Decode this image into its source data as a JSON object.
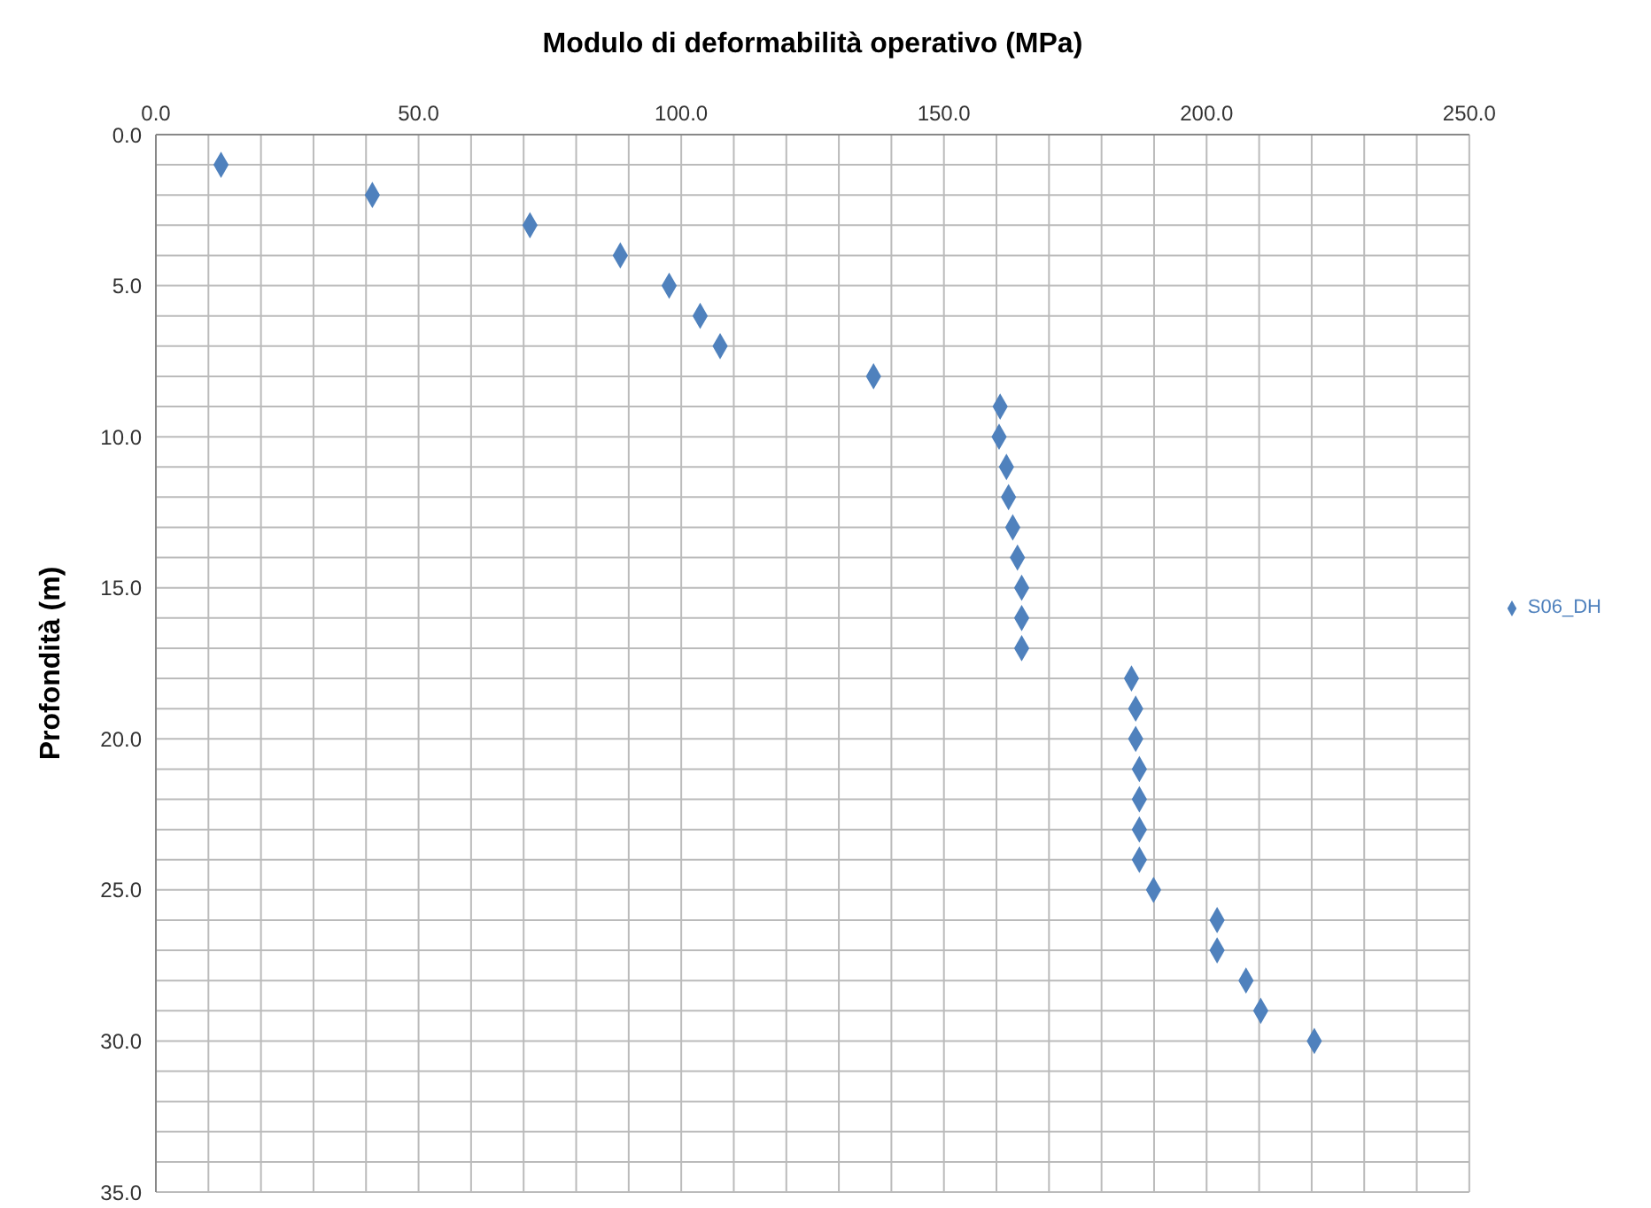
{
  "chart_data": {
    "type": "scatter",
    "xlabel": "Modulo di deformabilità operativo (MPa)",
    "ylabel": "Profondità (m)",
    "xlim": [
      0,
      250
    ],
    "xticks": [
      {
        "value": 0,
        "label": "0.0"
      },
      {
        "value": 10,
        "label": null
      },
      {
        "value": 20,
        "label": null
      },
      {
        "value": 30,
        "label": null
      },
      {
        "value": 40,
        "label": null
      },
      {
        "value": 50,
        "label": "50.0"
      },
      {
        "value": 60,
        "label": null
      },
      {
        "value": 70,
        "label": null
      },
      {
        "value": 80,
        "label": null
      },
      {
        "value": 90,
        "label": null
      },
      {
        "value": 100,
        "label": "100.0"
      },
      {
        "value": 110,
        "label": null
      },
      {
        "value": 120,
        "label": null
      },
      {
        "value": 130,
        "label": null
      },
      {
        "value": 140,
        "label": null
      },
      {
        "value": 150,
        "label": "150.0"
      },
      {
        "value": 160,
        "label": null
      },
      {
        "value": 170,
        "label": null
      },
      {
        "value": 180,
        "label": null
      },
      {
        "value": 190,
        "label": null
      },
      {
        "value": 200,
        "label": "200.0"
      },
      {
        "value": 210,
        "label": null
      },
      {
        "value": 220,
        "label": null
      },
      {
        "value": 230,
        "label": null
      },
      {
        "value": 240,
        "label": null
      },
      {
        "value": 250,
        "label": "250.0"
      }
    ],
    "ylim": [
      35,
      0
    ],
    "yticks": [
      {
        "value": 0,
        "label": "0.0"
      },
      {
        "value": 1,
        "label": null
      },
      {
        "value": 2,
        "label": null
      },
      {
        "value": 3,
        "label": null
      },
      {
        "value": 4,
        "label": null
      },
      {
        "value": 5,
        "label": "5.0"
      },
      {
        "value": 6,
        "label": null
      },
      {
        "value": 7,
        "label": null
      },
      {
        "value": 8,
        "label": null
      },
      {
        "value": 9,
        "label": null
      },
      {
        "value": 10,
        "label": "10.0"
      },
      {
        "value": 11,
        "label": null
      },
      {
        "value": 12,
        "label": null
      },
      {
        "value": 13,
        "label": null
      },
      {
        "value": 14,
        "label": null
      },
      {
        "value": 15,
        "label": "15.0"
      },
      {
        "value": 16,
        "label": null
      },
      {
        "value": 17,
        "label": null
      },
      {
        "value": 18,
        "label": null
      },
      {
        "value": 19,
        "label": null
      },
      {
        "value": 20,
        "label": "20.0"
      },
      {
        "value": 21,
        "label": null
      },
      {
        "value": 22,
        "label": null
      },
      {
        "value": 23,
        "label": null
      },
      {
        "value": 24,
        "label": null
      },
      {
        "value": 25,
        "label": "25.0"
      },
      {
        "value": 26,
        "label": null
      },
      {
        "value": 27,
        "label": null
      },
      {
        "value": 28,
        "label": null
      },
      {
        "value": 29,
        "label": null
      },
      {
        "value": 30,
        "label": "30.0"
      },
      {
        "value": 31,
        "label": null
      },
      {
        "value": 32,
        "label": null
      },
      {
        "value": 33,
        "label": null
      },
      {
        "value": 34,
        "label": null
      },
      {
        "value": 35,
        "label": "35.0"
      }
    ],
    "grid": true,
    "legend": "right",
    "marker": "diamond",
    "series": [
      {
        "name": "S06_DH",
        "color": "#4f81bd",
        "x": [
          12.4,
          41.2,
          71.2,
          88.4,
          97.7,
          103.6,
          107.4,
          136.6,
          160.7,
          160.5,
          161.9,
          162.3,
          163.1,
          164.0,
          164.8,
          164.8,
          164.8,
          185.7,
          186.5,
          186.5,
          187.2,
          187.2,
          187.2,
          187.2,
          189.9,
          202.0,
          202.0,
          207.5,
          210.3,
          220.5
        ],
        "values": [
          1,
          2,
          3,
          4,
          5,
          6,
          7,
          8,
          9,
          10,
          11,
          12,
          13,
          14,
          15,
          16,
          17,
          18,
          19,
          20,
          21,
          22,
          23,
          24,
          25,
          26,
          27,
          28,
          29,
          30
        ]
      }
    ]
  }
}
